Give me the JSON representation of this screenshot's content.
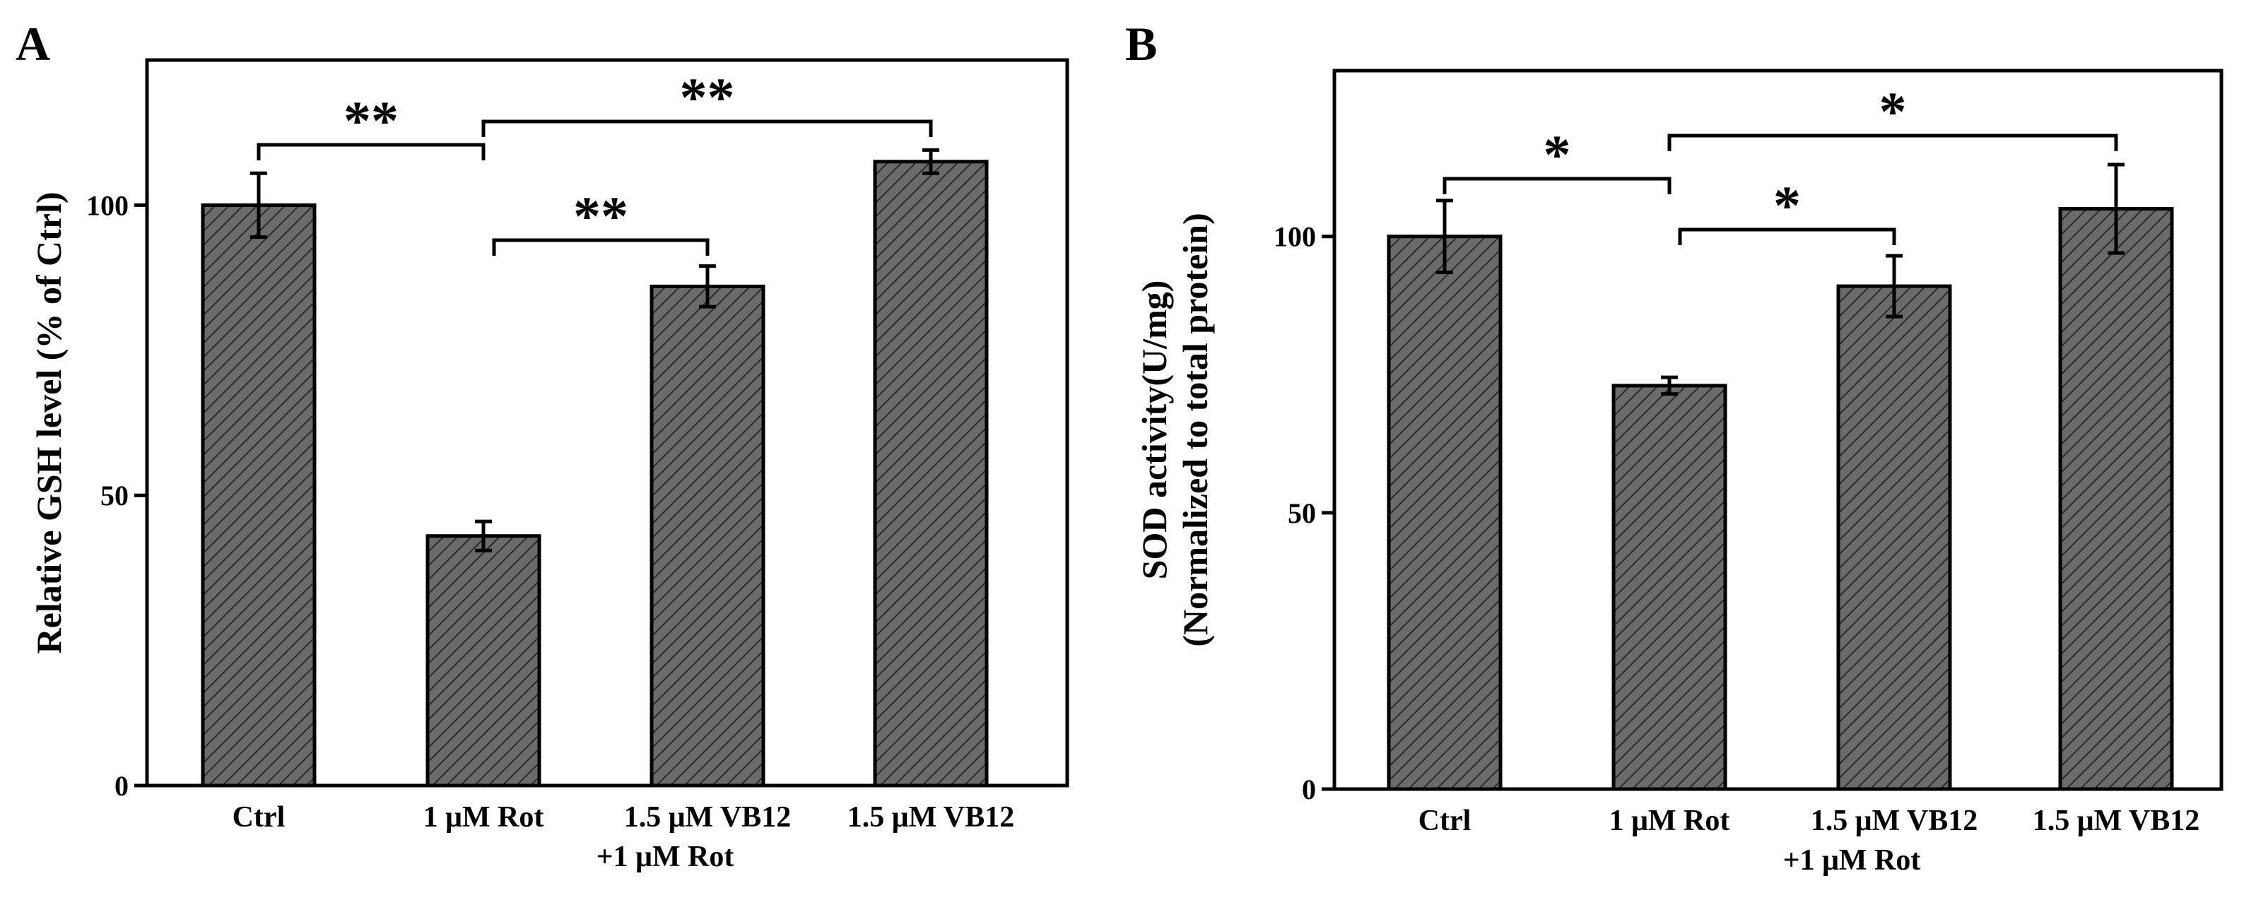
{
  "chart_data": [
    {
      "type": "bar",
      "panel": "A",
      "ylabel": "Relative GSH level (% of Ctrl)",
      "xlabel": "",
      "ylim": [
        0,
        125
      ],
      "yticks": [
        0,
        50,
        100
      ],
      "categories": [
        [
          "Ctrl"
        ],
        [
          "1 μM Rot"
        ],
        [
          "1.5 μM VB12",
          "+1 μM Rot"
        ],
        [
          "1.5 μM VB12"
        ]
      ],
      "values": [
        100,
        43,
        86,
        107.5
      ],
      "errors": [
        5.5,
        2.5,
        3.5,
        2.0
      ],
      "significance": [
        {
          "from": 0,
          "to": 1,
          "label": "**"
        },
        {
          "from": 1,
          "to": 3,
          "label": "**"
        },
        {
          "from": 1,
          "to": 2,
          "label": "**"
        }
      ],
      "fill": "#6b6b6b",
      "hatch": "diagonal"
    },
    {
      "type": "bar",
      "panel": "B",
      "ylabel": [
        "SOD activity(U/mg)",
        "(Normalized to total protein)"
      ],
      "xlabel": "",
      "ylim": [
        0,
        130
      ],
      "yticks": [
        0,
        50,
        100
      ],
      "categories": [
        [
          "Ctrl"
        ],
        [
          "1 μM Rot"
        ],
        [
          "1.5 μM VB12",
          "+1 μM Rot"
        ],
        [
          "1.5 μM VB12"
        ]
      ],
      "values": [
        100,
        73,
        91,
        105
      ],
      "errors": [
        6.5,
        1.5,
        5.5,
        8.0
      ],
      "significance": [
        {
          "from": 0,
          "to": 1,
          "label": "*"
        },
        {
          "from": 1,
          "to": 3,
          "label": "*"
        },
        {
          "from": 1,
          "to": 2,
          "label": "*"
        }
      ],
      "fill": "#6b6b6b",
      "hatch": "diagonal"
    }
  ]
}
